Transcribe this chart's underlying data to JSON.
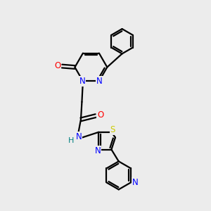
{
  "background_color": "#ececec",
  "bond_color": "#000000",
  "atom_colors": {
    "N": "#0000ff",
    "O": "#ff0000",
    "S": "#cccc00",
    "H": "#008080",
    "C": "#000000"
  },
  "figsize": [
    3.0,
    3.0
  ],
  "dpi": 100
}
